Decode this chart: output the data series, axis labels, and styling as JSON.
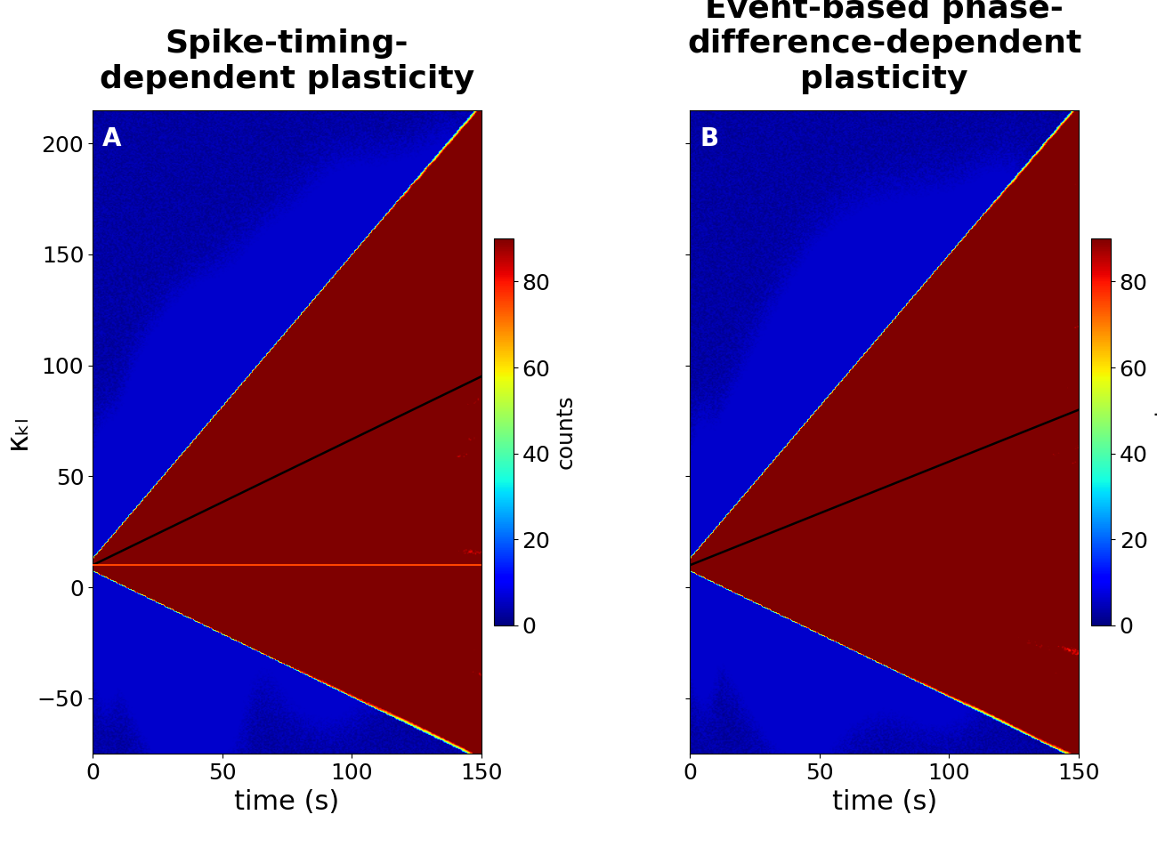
{
  "title_A": "Spike-timing-\ndependent plasticity",
  "title_B": "Event-based phase-\ndifference-dependent\nplasticity",
  "label_A": "A",
  "label_B": "B",
  "xlabel": "time (s)",
  "ylabel": "κₖₗ",
  "colorbar_label": "counts",
  "xlim": [
    0,
    150
  ],
  "ylim_A": [
    -75,
    215
  ],
  "ylim_B": [
    -75,
    215
  ],
  "xticks": [
    0,
    50,
    100,
    150
  ],
  "yticks_A": [
    -50,
    0,
    50,
    100,
    150,
    200
  ],
  "yticks_B": [
    -50,
    0,
    50,
    100,
    150,
    200
  ],
  "clim": [
    0,
    90
  ],
  "cmap": "jet",
  "bg_color": "#ffffff",
  "title_fontsize": 26,
  "label_fontsize": 22,
  "tick_fontsize": 18,
  "colorbar_fontsize": 18,
  "panel_label_fontsize": 20,
  "line_color_black": "#000000",
  "line_color_red": "#ff4400",
  "origin_x": 0,
  "origin_y": 10,
  "black_line_A_end_y": 95,
  "black_line_B_end_y": 80
}
